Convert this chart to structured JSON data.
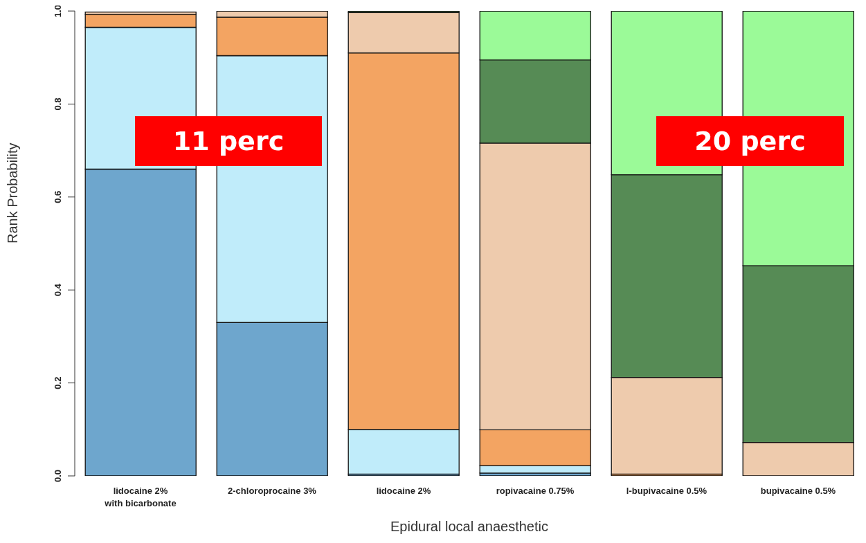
{
  "chart_data": {
    "type": "bar",
    "stacked": true,
    "xlabel": "Epidural local anaesthetic",
    "ylabel": "Rank Probability",
    "categories": [
      "lidocaine 2%\nwith bicarbonate",
      "2-chloroprocaine 3%",
      "lidocaine 2%",
      "ropivacaine 0.75%",
      "l-bupivacaine 0.5%",
      "bupivacaine 0.5%"
    ],
    "series": [
      {
        "color": "#6ea6cd",
        "values": [
          0.66,
          0.33,
          0.004,
          0.006,
          0,
          0
        ]
      },
      {
        "color": "#c0ecfa",
        "values": [
          0.305,
          0.574,
          0.096,
          0.016,
          0,
          0
        ]
      },
      {
        "color": "#f3a462",
        "values": [
          0.028,
          0.083,
          0.81,
          0.077,
          0.004,
          0
        ]
      },
      {
        "color": "#eecbad",
        "values": [
          0.005,
          0.013,
          0.087,
          0.617,
          0.208,
          0.072
        ]
      },
      {
        "color": "#568b55",
        "values": [
          null,
          0,
          0.003,
          0.179,
          0.436,
          0.38
        ]
      },
      {
        "color": "#9bfa98",
        "values": [
          0,
          0,
          0,
          0.105,
          0.352,
          0.548
        ]
      }
    ],
    "ylim": [
      0,
      1
    ],
    "yticks": [
      {
        "value": 0,
        "label": "0.0"
      },
      {
        "value": 0.2,
        "label": "0.2"
      },
      {
        "value": 0.4,
        "label": "0.4"
      },
      {
        "value": 0.6,
        "label": "0.6"
      },
      {
        "value": 0.8,
        "label": "0.8"
      },
      {
        "value": 1,
        "label": "1.0"
      }
    ],
    "grid": false,
    "legend": false,
    "annotations": [
      "11 perc",
      "20 perc"
    ]
  }
}
